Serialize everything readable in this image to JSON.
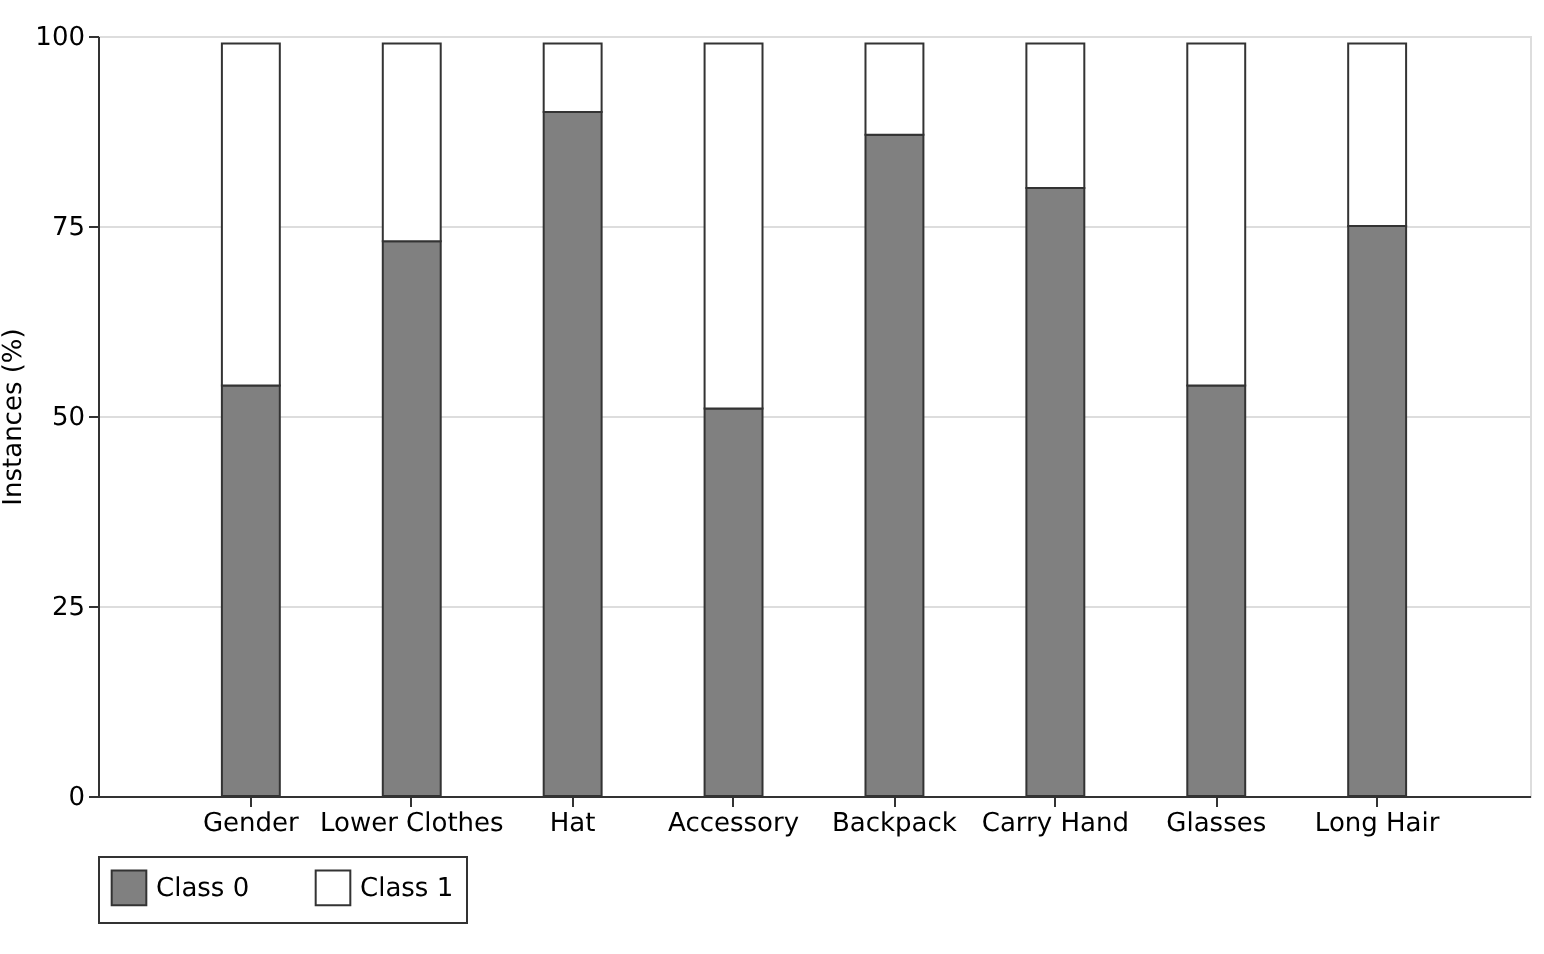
{
  "chart_data": {
    "type": "bar",
    "ylabel": "Instances (%)",
    "stacked": true,
    "categories": [
      "Gender",
      "Lower Clothes",
      "Hat",
      "Accessory",
      "Backpack",
      "Carry Hand",
      "Glasses",
      "Long Hair"
    ],
    "series": [
      {
        "name": "Class 0",
        "color": "#808080",
        "values": [
          54,
          73,
          90,
          51,
          87,
          80,
          54,
          75
        ]
      },
      {
        "name": "Class 1",
        "color": "#ffffff",
        "values": [
          45,
          26,
          9,
          48,
          12,
          19,
          45,
          24
        ]
      }
    ],
    "ylim": [
      0,
      100
    ],
    "yticks": [
      0,
      25,
      50,
      75,
      100
    ],
    "grid": "y",
    "legend": "bottom"
  }
}
